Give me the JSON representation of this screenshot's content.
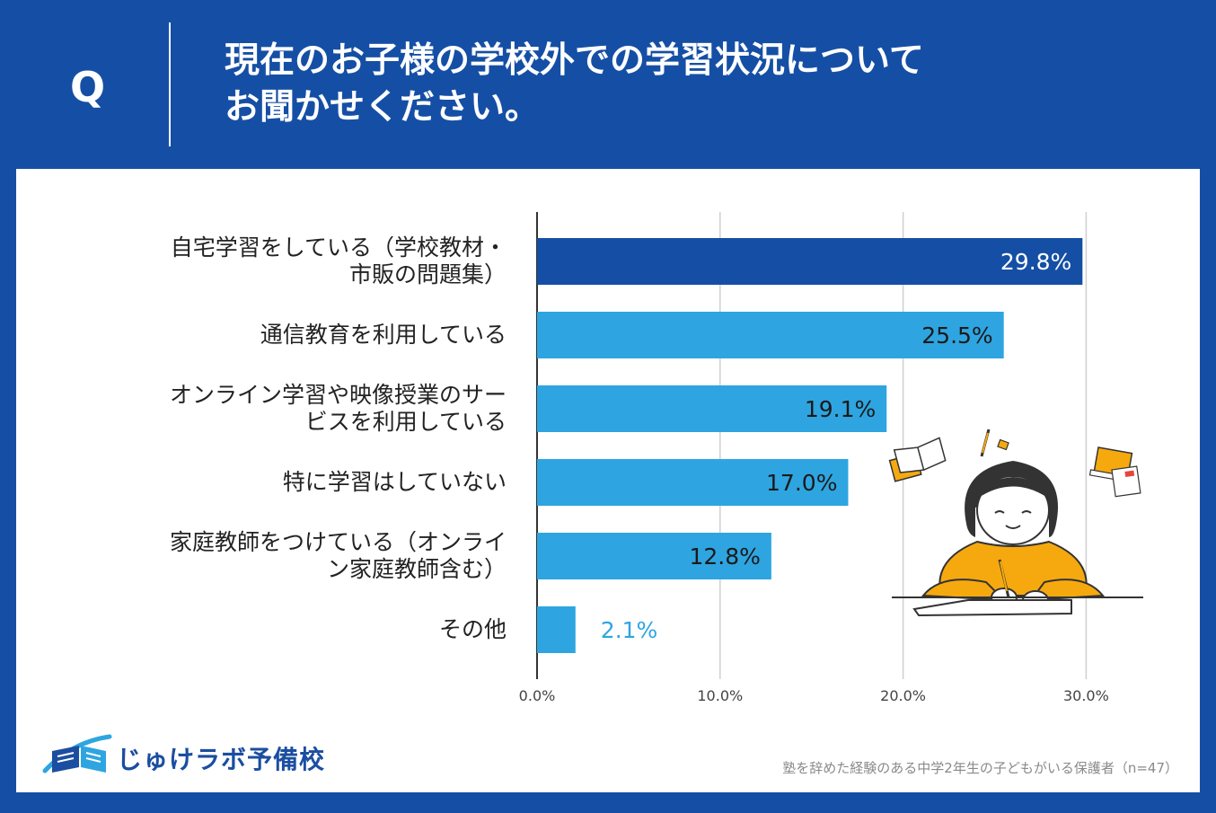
{
  "header": {
    "q_letter": "Q",
    "question_line1": "現在のお子様の学校外での学習状況について",
    "question_line2": "お聞かせください。"
  },
  "chart_data": {
    "type": "bar",
    "orientation": "horizontal",
    "categories": [
      [
        "自宅学習をしている（学校教材・",
        "市販の問題集）"
      ],
      [
        "通信教育を利用している"
      ],
      [
        "オンライン学習や映像授業のサー",
        "ビスを利用している"
      ],
      [
        "特に学習はしていない"
      ],
      [
        "家庭教師をつけている（オンライ",
        "ン家庭教師含む）"
      ],
      [
        "その他"
      ]
    ],
    "values": [
      29.8,
      25.5,
      19.1,
      17.0,
      12.8,
      2.1
    ],
    "value_labels": [
      "29.8%",
      "25.5%",
      "19.1%",
      "17.0%",
      "12.8%",
      "2.1%"
    ],
    "xlim": [
      0,
      30
    ],
    "x_ticks": [
      "0.0%",
      "10.0%",
      "20.0%",
      "30.0%"
    ],
    "grid": true,
    "colors": {
      "highlight": "#154fa5",
      "bar": "#2ea5e0",
      "outside_label": "#2ea5e0"
    }
  },
  "footer": {
    "logo_text": "じゅけラボ予備校",
    "note": "塾を辞めた経験のある中学2年生の子どもがいる保護者（n=47）"
  }
}
